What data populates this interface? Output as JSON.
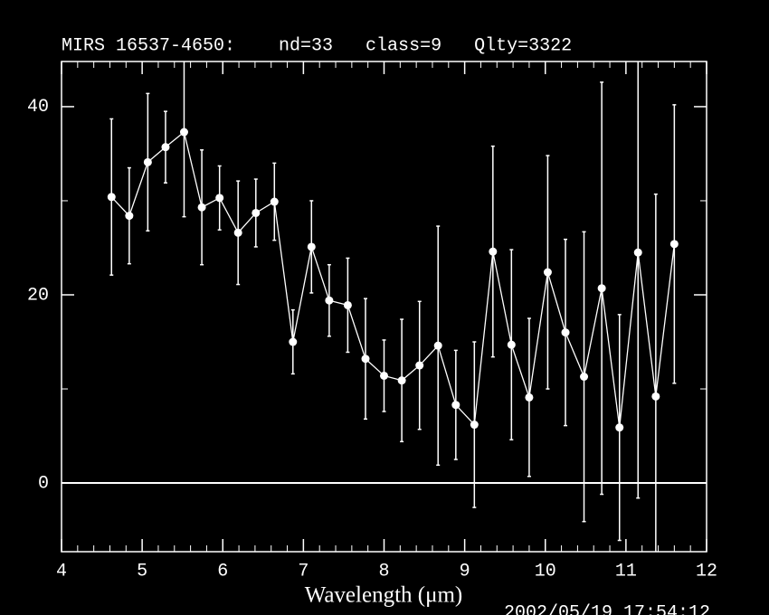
{
  "chart_data": {
    "type": "scatter",
    "title": "MIRS 16537-4650:    nd=33   class=9   Qlty=3322",
    "x_label": "Wavelength (μm)",
    "timestamp": "2002/05/19 17:54:12",
    "xlim": [
      4,
      12
    ],
    "ylim": [
      -7.3,
      44.8
    ],
    "xticks": [
      4,
      5,
      6,
      7,
      8,
      9,
      10,
      11,
      12
    ],
    "yticks": [
      0,
      20,
      40
    ],
    "zero_line": 0,
    "series": [
      {
        "color": "#ffffff",
        "x": [
          4.62,
          4.84,
          5.07,
          5.29,
          5.52,
          5.74,
          5.96,
          6.19,
          6.41,
          6.64,
          6.87,
          7.1,
          7.32,
          7.55,
          7.77,
          8.0,
          8.22,
          8.44,
          8.67,
          8.89,
          9.12,
          9.35,
          9.58,
          9.8,
          10.03,
          10.25,
          10.48,
          10.7,
          10.92,
          11.15,
          11.37,
          11.6
        ],
        "values": [
          30.4,
          28.4,
          34.1,
          35.7,
          37.3,
          29.3,
          30.3,
          26.6,
          28.7,
          29.9,
          15.0,
          25.1,
          19.4,
          18.9,
          13.2,
          11.4,
          10.9,
          12.5,
          14.6,
          8.3,
          6.2,
          24.6,
          14.7,
          9.1,
          22.4,
          16.0,
          11.3,
          20.7,
          5.9,
          24.5,
          9.2,
          25.4
        ],
        "errors": [
          8.3,
          5.1,
          7.3,
          3.8,
          9.0,
          6.1,
          3.4,
          5.5,
          3.6,
          4.1,
          3.4,
          4.9,
          3.8,
          5.0,
          6.4,
          3.8,
          6.5,
          6.8,
          12.7,
          5.8,
          8.8,
          11.2,
          10.1,
          8.4,
          12.4,
          9.9,
          15.4,
          21.9,
          12.0,
          26.1,
          21.5,
          14.8
        ]
      }
    ]
  }
}
